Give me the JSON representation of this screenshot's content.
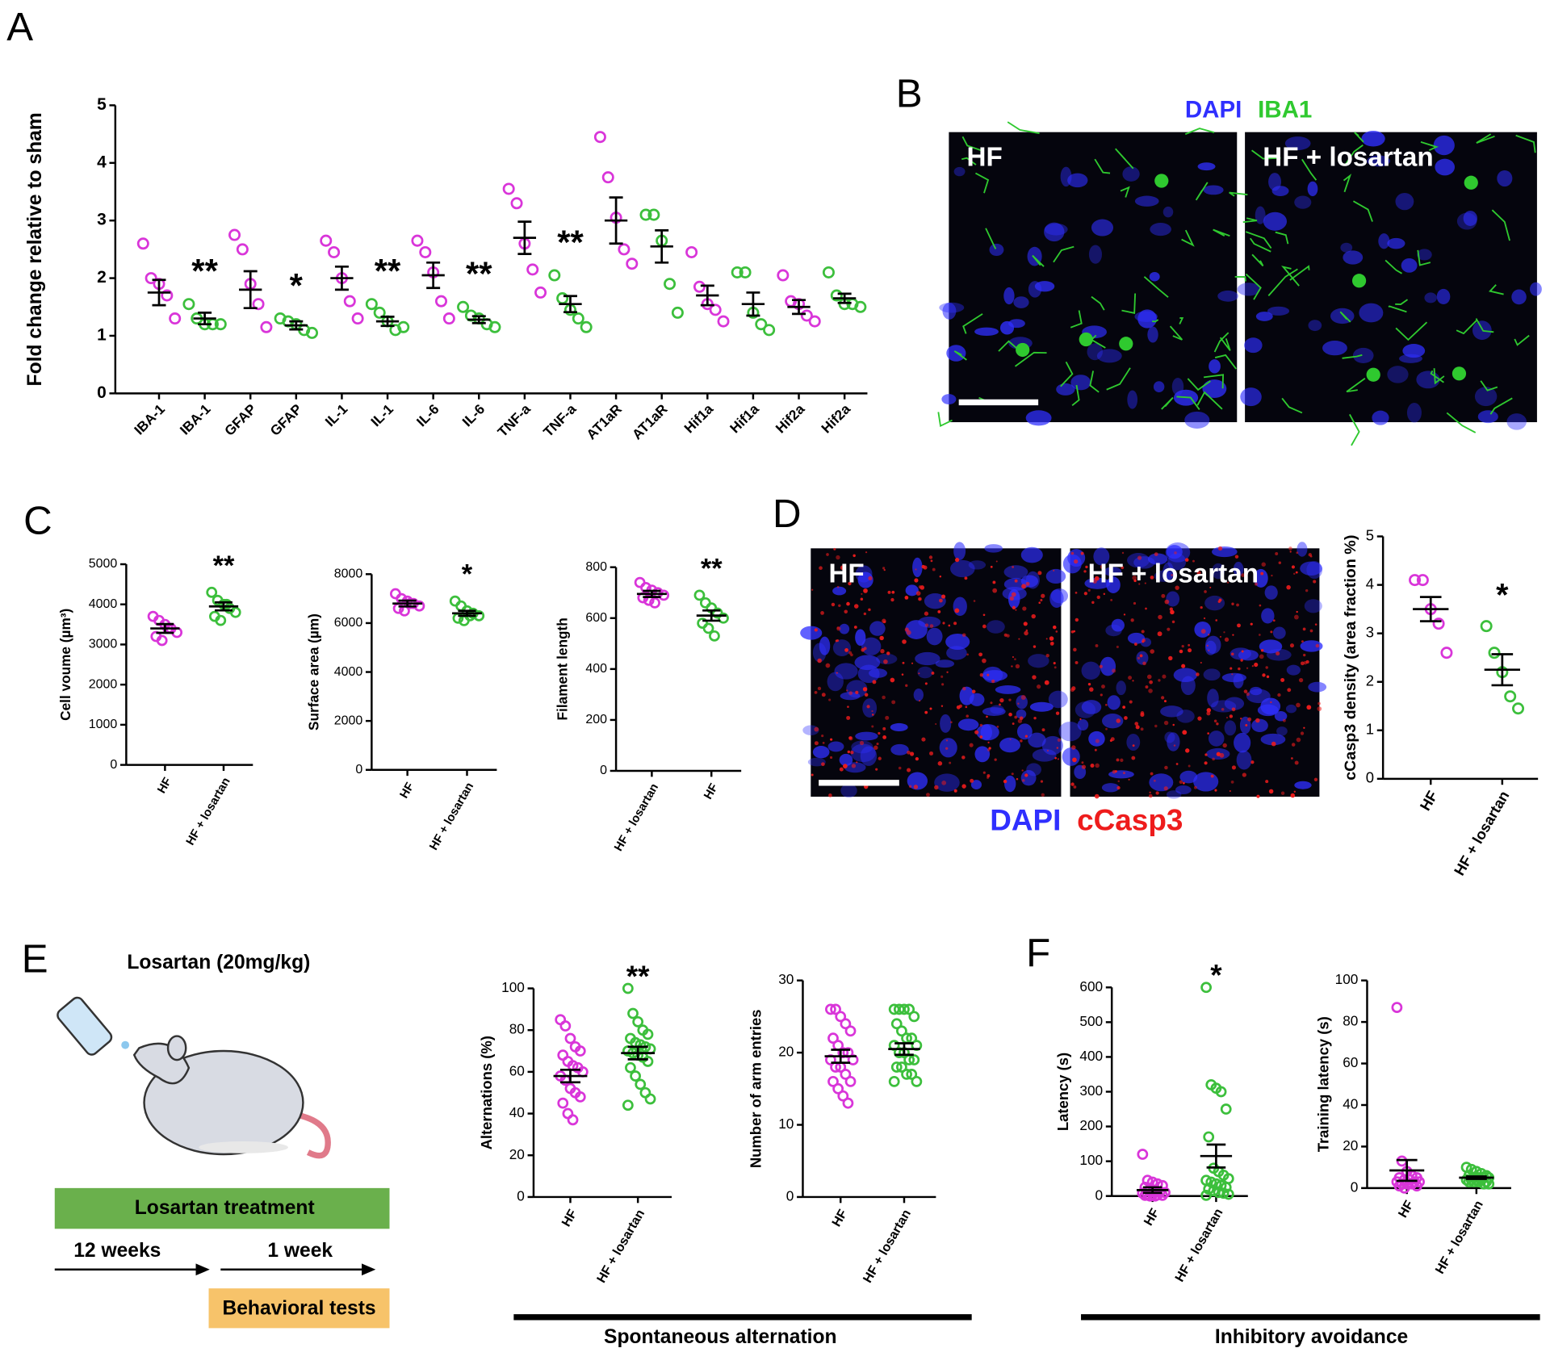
{
  "panel_labels": [
    "A",
    "B",
    "C",
    "D",
    "E",
    "F"
  ],
  "microscopy": [
    {
      "labels": [
        "HF",
        "HF + losartan"
      ],
      "channels": [
        {
          "name": "DAPI",
          "color": "#2f2fff"
        },
        {
          "name": "IBA1",
          "color": "#2fc92f"
        }
      ]
    },
    {
      "labels": [
        "HF",
        "HF + losartan"
      ],
      "channels": [
        {
          "name": "DAPI",
          "color": "#2f2fff"
        },
        {
          "name": "cCasp3",
          "color": "#ee1c1c"
        }
      ]
    }
  ],
  "schematic": {
    "dose": "Losartan (20mg/kg)",
    "treatment": "Losartan treatment",
    "phases": [
      "12 weeks",
      "1 week"
    ],
    "tests": "Behavioral tests"
  },
  "group_labels": [
    "Spontaneous alternation",
    "Inhibitory avoidance"
  ],
  "chart_data": [
    {
      "type": "dotplot",
      "y_label": "Fold change relative to sham",
      "ylim": [
        0,
        5
      ],
      "yticks": [
        0,
        1,
        2,
        3,
        4,
        5
      ],
      "categories": [
        "IBA-1",
        "IBA-1",
        "GFAP",
        "GFAP",
        "IL-1",
        "IL-1",
        "IL-6",
        "IL-6",
        "TNF-a",
        "TNF-a",
        "AT1aR",
        "AT1aR",
        "Hif1a",
        "Hif1a",
        "Hif2a",
        "Hif2a"
      ],
      "colors": [
        "#d935d9",
        "#3cbf3c",
        "#d935d9",
        "#3cbf3c",
        "#d935d9",
        "#3cbf3c",
        "#d935d9",
        "#3cbf3c",
        "#d935d9",
        "#3cbf3c",
        "#d935d9",
        "#3cbf3c",
        "#d935d9",
        "#3cbf3c",
        "#d935d9",
        "#3cbf3c"
      ],
      "points": [
        [
          2.6,
          2.0,
          1.9,
          1.7,
          1.3
        ],
        [
          1.55,
          1.3,
          1.2,
          1.2,
          1.2
        ],
        [
          2.75,
          2.5,
          1.9,
          1.55,
          1.15
        ],
        [
          1.3,
          1.25,
          1.2,
          1.1,
          1.05
        ],
        [
          2.65,
          2.45,
          2.0,
          1.6,
          1.3
        ],
        [
          1.55,
          1.4,
          1.25,
          1.1,
          1.15
        ],
        [
          2.65,
          2.45,
          2.1,
          1.6,
          1.3
        ],
        [
          1.5,
          1.35,
          1.3,
          1.2,
          1.15
        ],
        [
          3.55,
          3.3,
          2.6,
          2.15,
          1.75
        ],
        [
          2.05,
          1.65,
          1.45,
          1.3,
          1.15
        ],
        [
          4.45,
          3.75,
          3.05,
          2.5,
          2.25
        ],
        [
          3.1,
          3.1,
          2.65,
          1.9,
          1.4
        ],
        [
          2.45,
          1.85,
          1.55,
          1.45,
          1.25
        ],
        [
          2.1,
          2.1,
          1.4,
          1.2,
          1.1
        ],
        [
          2.05,
          1.6,
          1.55,
          1.35,
          1.25
        ],
        [
          2.1,
          1.7,
          1.55,
          1.55,
          1.5
        ]
      ],
      "means": [
        1.75,
        1.3,
        1.8,
        1.18,
        2.0,
        1.25,
        2.05,
        1.28,
        2.7,
        1.55,
        3.0,
        2.55,
        1.7,
        1.55,
        1.5,
        1.65
      ],
      "errors": [
        0.22,
        0.1,
        0.32,
        0.07,
        0.2,
        0.08,
        0.22,
        0.06,
        0.28,
        0.14,
        0.4,
        0.28,
        0.17,
        0.2,
        0.12,
        0.08
      ],
      "annotations": [
        null,
        "**",
        null,
        "*",
        null,
        "**",
        null,
        "**",
        null,
        "**",
        null,
        null,
        null,
        null,
        null,
        null
      ]
    },
    {
      "type": "dotplot",
      "y_label": "Cell voume (µm³)",
      "ylim": [
        0,
        5000
      ],
      "yticks": [
        0,
        1000,
        2000,
        3000,
        4000,
        5000
      ],
      "categories": [
        "HF",
        "HF + losartan"
      ],
      "colors": [
        "#d935d9",
        "#3cbf3c"
      ],
      "points": [
        [
          3700,
          3600,
          3500,
          3400,
          3300,
          3200,
          3100,
          3400
        ],
        [
          4300,
          4100,
          4000,
          3900,
          3800,
          3700,
          3600,
          4000
        ]
      ],
      "means": [
        3400,
        3950
      ],
      "errors": [
        110,
        100
      ],
      "annotations": [
        null,
        "**"
      ]
    },
    {
      "type": "dotplot",
      "y_label": "Surface area (µm)",
      "ylim": [
        0,
        8000
      ],
      "yticks": [
        0,
        2000,
        4000,
        6000,
        8000
      ],
      "categories": [
        "HF",
        "HF + losartan"
      ],
      "colors": [
        "#d935d9",
        "#3cbf3c"
      ],
      "points": [
        [
          7200,
          7000,
          6900,
          6800,
          6700,
          6600,
          6500,
          6800
        ],
        [
          6900,
          6700,
          6500,
          6400,
          6300,
          6200,
          6100,
          6300
        ]
      ],
      "means": [
        6800,
        6400
      ],
      "errors": [
        120,
        100
      ],
      "annotations": [
        null,
        "*"
      ]
    },
    {
      "type": "dotplot",
      "y_label": "Filament length",
      "ylim": [
        0,
        800
      ],
      "yticks": [
        0,
        200,
        400,
        600,
        800
      ],
      "categories": [
        "HF + losartan",
        "HF"
      ],
      "colors": [
        "#d935d9",
        "#3cbf3c"
      ],
      "points": [
        [
          740,
          720,
          710,
          700,
          690,
          680,
          670,
          660
        ],
        [
          690,
          660,
          640,
          620,
          600,
          580,
          560,
          530
        ]
      ],
      "means": [
        695,
        610
      ],
      "errors": [
        12,
        20
      ],
      "annotations": [
        null,
        "**"
      ]
    },
    {
      "type": "dotplot",
      "y_label": "cCasp3 density (area fraction %)",
      "ylim": [
        0,
        5
      ],
      "yticks": [
        0,
        1,
        2,
        3,
        4,
        5
      ],
      "categories": [
        "HF",
        "HF + losartan"
      ],
      "colors": [
        "#d935d9",
        "#3cbf3c"
      ],
      "points": [
        [
          4.1,
          4.1,
          3.5,
          3.2,
          2.6
        ],
        [
          3.15,
          2.6,
          2.2,
          1.7,
          1.45
        ]
      ],
      "means": [
        3.5,
        2.25
      ],
      "errors": [
        0.25,
        0.32
      ],
      "annotations": [
        null,
        "*"
      ]
    },
    {
      "type": "dotplot",
      "y_label": "Alternations (%)",
      "ylim": [
        0,
        100
      ],
      "yticks": [
        0,
        20,
        40,
        60,
        80,
        100
      ],
      "categories": [
        "HF",
        "HF + losartan"
      ],
      "colors": [
        "#d935d9",
        "#3cbf3c"
      ],
      "points": [
        [
          85,
          82,
          76,
          72,
          70,
          68,
          65,
          63,
          62,
          60,
          58,
          56,
          52,
          50,
          48,
          45,
          40,
          37
        ],
        [
          100,
          88,
          84,
          80,
          78,
          76,
          74,
          73,
          72,
          71,
          70,
          69,
          68,
          67,
          65,
          62,
          58,
          54,
          50,
          47,
          44
        ]
      ],
      "means": [
        58,
        69
      ],
      "errors": [
        3,
        3
      ],
      "annotations": [
        null,
        "**"
      ]
    },
    {
      "type": "dotplot",
      "y_label": "Number of arm entries",
      "ylim": [
        0,
        30
      ],
      "yticks": [
        0,
        10,
        20,
        30
      ],
      "categories": [
        "HF",
        "HF + losartan"
      ],
      "colors": [
        "#d935d9",
        "#3cbf3c"
      ],
      "points": [
        [
          26,
          26,
          25,
          24,
          23,
          22,
          21,
          20,
          20,
          19,
          19,
          18,
          18,
          17,
          16,
          16,
          15,
          14,
          13
        ],
        [
          26,
          26,
          26,
          26,
          25,
          24,
          23,
          22,
          22,
          21,
          21,
          20,
          20,
          19,
          19,
          18,
          18,
          17,
          17,
          16,
          16
        ]
      ],
      "means": [
        19.5,
        20.5
      ],
      "errors": [
        0.9,
        0.8
      ],
      "annotations": [
        null,
        null
      ]
    },
    {
      "type": "dotplot",
      "y_label": "Latency (s)",
      "ylim": [
        0,
        600
      ],
      "yticks": [
        0,
        100,
        200,
        300,
        400,
        500,
        600
      ],
      "categories": [
        "HF",
        "HF + losartan"
      ],
      "colors": [
        "#d935d9",
        "#3cbf3c"
      ],
      "points": [
        [
          120,
          45,
          40,
          35,
          30,
          25,
          20,
          15,
          12,
          10,
          8,
          5,
          5,
          3,
          2,
          2,
          0,
          0
        ],
        [
          600,
          320,
          310,
          300,
          250,
          170,
          80,
          70,
          60,
          50,
          45,
          40,
          35,
          30,
          25,
          20,
          15,
          10,
          8,
          5,
          2
        ]
      ],
      "means": [
        17,
        115
      ],
      "errors": [
        8,
        33
      ],
      "annotations": [
        null,
        "*"
      ]
    },
    {
      "type": "dotplot",
      "y_label": "Training latency (s)",
      "ylim": [
        0,
        100
      ],
      "yticks": [
        0,
        20,
        40,
        60,
        80,
        100
      ],
      "categories": [
        "HF",
        "HF + losartan"
      ],
      "colors": [
        "#d935d9",
        "#3cbf3c"
      ],
      "points": [
        [
          87,
          13,
          8,
          6,
          5,
          5,
          4,
          4,
          3,
          3,
          3,
          2,
          2,
          2,
          1,
          1,
          0
        ],
        [
          10,
          9,
          8,
          7,
          6,
          6,
          5,
          5,
          5,
          5,
          4,
          4,
          4,
          4,
          3,
          3,
          3,
          3,
          2,
          2
        ]
      ],
      "means": [
        8.5,
        5
      ],
      "errors": [
        5,
        0.6
      ],
      "annotations": [
        null,
        null
      ]
    }
  ]
}
